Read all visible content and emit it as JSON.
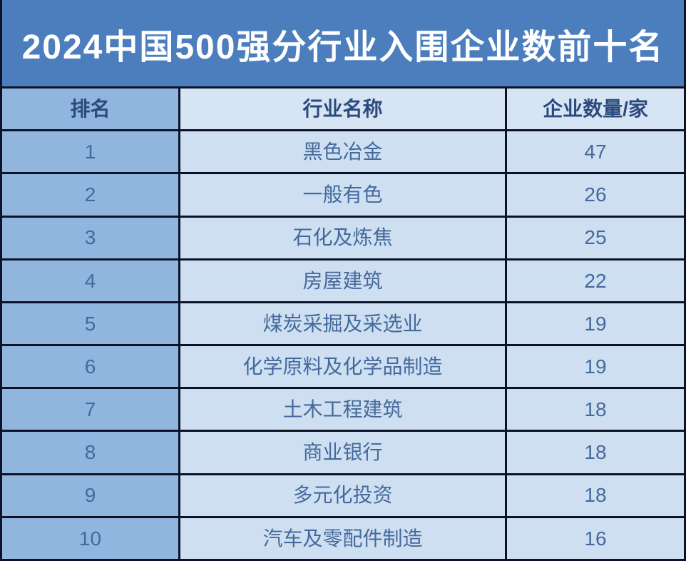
{
  "header": {
    "title": "2024中国500强分行业入围企业数前十名"
  },
  "chart_data": {
    "type": "table",
    "title": "2024中国500强分行业入围企业数前十名",
    "columns": [
      "排名",
      "行业名称",
      "企业数量/家"
    ],
    "rows": [
      [
        "1",
        "黑色冶金",
        "47"
      ],
      [
        "2",
        "一般有色",
        "26"
      ],
      [
        "3",
        "石化及炼焦",
        "25"
      ],
      [
        "4",
        "房屋建筑",
        "22"
      ],
      [
        "5",
        "煤炭采掘及采选业",
        "19"
      ],
      [
        "6",
        "化学原料及化学品制造",
        "19"
      ],
      [
        "7",
        "土木工程建筑",
        "18"
      ],
      [
        "8",
        "商业银行",
        "18"
      ],
      [
        "9",
        "多元化投资",
        "18"
      ],
      [
        "10",
        "汽车及零配件制造",
        "16"
      ]
    ]
  },
  "colors": {
    "title_bg": "#4c7ebd",
    "title_text": "#ffffff",
    "rank_column_bg": "#90b5df",
    "header_cell_bg": "#d7e4f4",
    "data_cell_bg": "#cedff2",
    "grid_border": "#0d1326",
    "header_text": "#2c4b7d",
    "data_text": "#44699b"
  }
}
